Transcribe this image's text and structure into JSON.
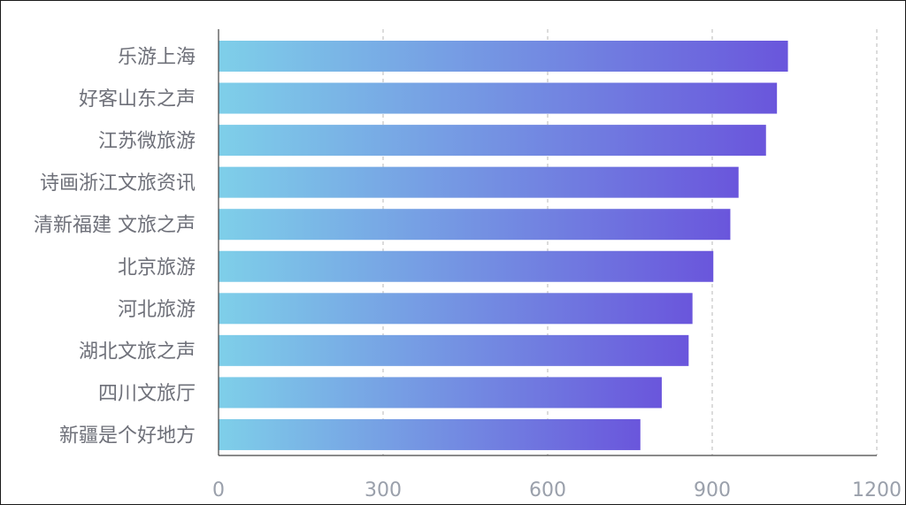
{
  "chart_data": {
    "type": "bar",
    "orientation": "horizontal",
    "categories": [
      "乐游上海",
      "好客山东之声",
      "江苏微旅游",
      "诗画浙江文旅资讯",
      "清新福建 文旅之声",
      "北京旅游",
      "河北旅游",
      "湖北文旅之声",
      "四川文旅厅",
      "新疆是个好地方"
    ],
    "values": [
      1038,
      1018,
      998,
      948,
      933,
      902,
      864,
      857,
      808,
      769
    ],
    "xlim": [
      0,
      1200
    ],
    "xticks": [
      "0",
      "300",
      "600",
      "900",
      "1200"
    ],
    "grid": "vertical dashed",
    "title": "",
    "xlabel": "",
    "ylabel": "",
    "colors": {
      "bar_gradient_start": "#7ecfe9",
      "bar_gradient_end": "#6a56dc",
      "grid": "#c8c8c8",
      "axis": "#444444",
      "category_text": "#6e7079",
      "tick_text": "#9aa0ab"
    }
  }
}
